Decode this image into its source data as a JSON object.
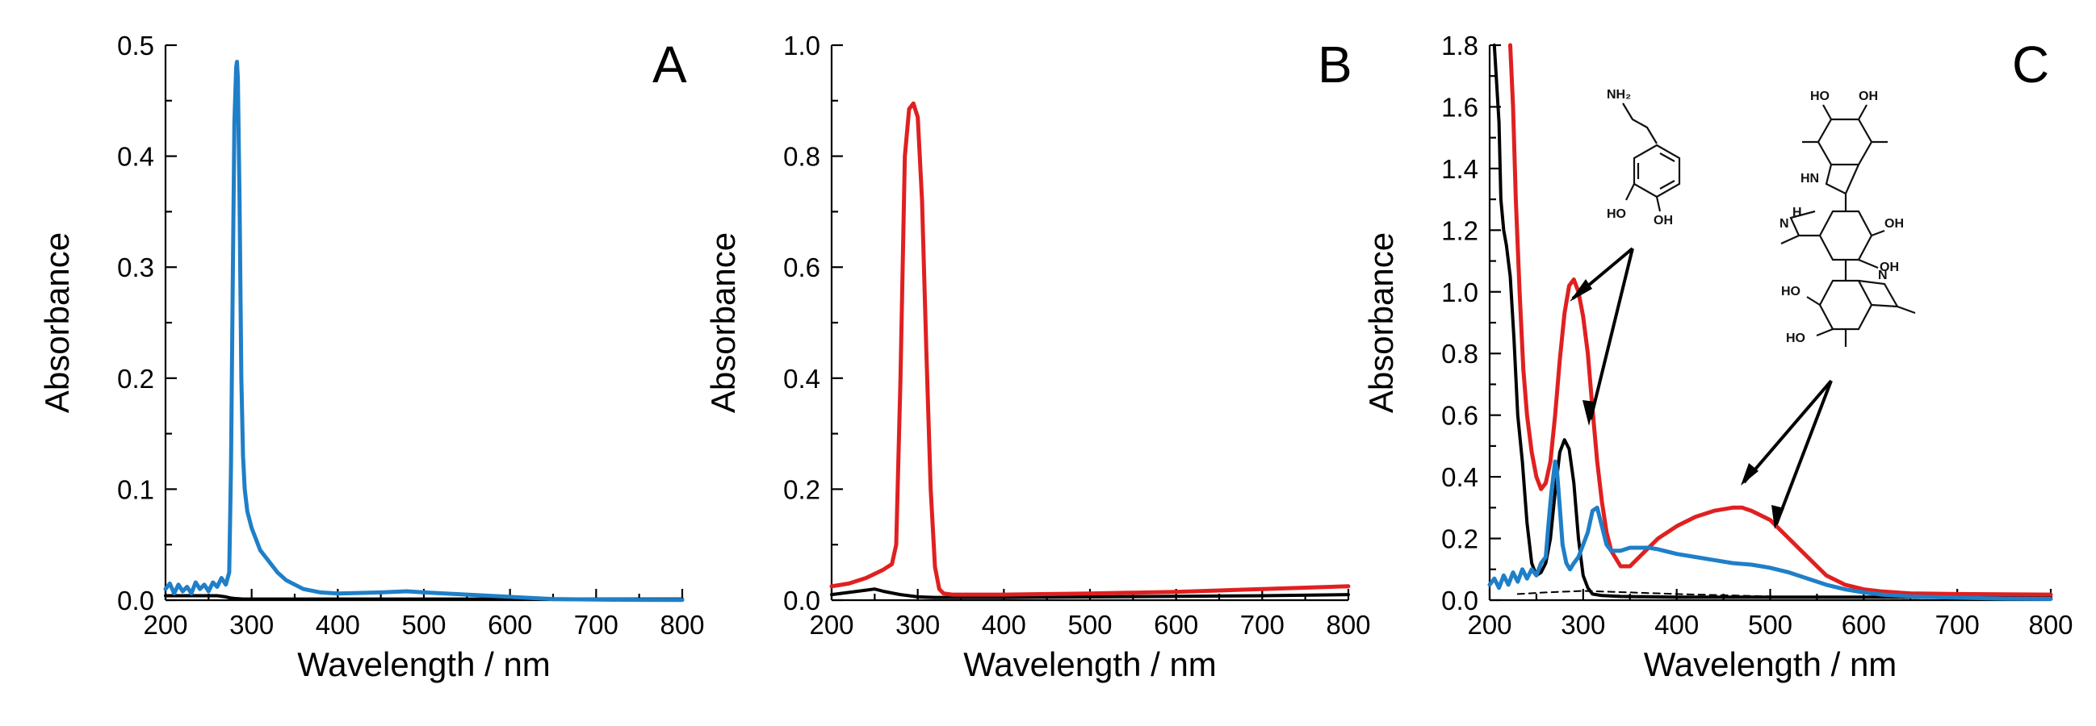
{
  "chart_data": [
    {
      "panel": "A",
      "type": "line",
      "xlabel": "Wavelength / nm",
      "ylabel": "Absorbance",
      "xlim": [
        200,
        800
      ],
      "ylim": [
        0,
        0.5
      ],
      "xticks": [
        200,
        300,
        400,
        500,
        600,
        700,
        800
      ],
      "yticks": [
        0.0,
        0.1,
        0.2,
        0.3,
        0.4,
        0.5
      ],
      "ytick_labels": [
        "0.0",
        "0.1",
        "0.2",
        "0.3",
        "0.4",
        "0.5"
      ],
      "series": [
        {
          "name": "black",
          "color": "#000000",
          "x": [
            200,
            260,
            270,
            275,
            280,
            290,
            300,
            320,
            400,
            500,
            600,
            700,
            800
          ],
          "y": [
            0.004,
            0.004,
            0.003,
            0.002,
            0.0015,
            0.001,
            0.001,
            0.001,
            0.001,
            0.001,
            0.001,
            0.001,
            0.001
          ]
        },
        {
          "name": "blue",
          "color": "#1f7fc8",
          "x": [
            200,
            205,
            210,
            215,
            220,
            225,
            230,
            235,
            240,
            245,
            250,
            255,
            260,
            265,
            270,
            274,
            276,
            278,
            280,
            282,
            283,
            284,
            286,
            288,
            290,
            292,
            295,
            300,
            305,
            310,
            320,
            330,
            340,
            360,
            380,
            400,
            450,
            480,
            500,
            550,
            600,
            650,
            700,
            750,
            800
          ],
          "y": [
            0.01,
            0.015,
            0.006,
            0.014,
            0.008,
            0.012,
            0.006,
            0.016,
            0.01,
            0.014,
            0.008,
            0.016,
            0.012,
            0.02,
            0.014,
            0.025,
            0.12,
            0.28,
            0.43,
            0.48,
            0.485,
            0.47,
            0.36,
            0.2,
            0.13,
            0.1,
            0.08,
            0.065,
            0.055,
            0.045,
            0.035,
            0.025,
            0.018,
            0.01,
            0.007,
            0.006,
            0.007,
            0.008,
            0.007,
            0.005,
            0.003,
            0.001,
            0.0005,
            0.0003,
            0.0002
          ]
        }
      ]
    },
    {
      "panel": "B",
      "type": "line",
      "xlabel": "Wavelength / nm",
      "ylabel": "Absorbance",
      "xlim": [
        200,
        800
      ],
      "ylim": [
        0,
        1.0
      ],
      "xticks": [
        200,
        300,
        400,
        500,
        600,
        700,
        800
      ],
      "yticks": [
        0.0,
        0.2,
        0.4,
        0.6,
        0.8,
        1.0
      ],
      "ytick_labels": [
        "0.0",
        "0.2",
        "0.4",
        "0.6",
        "0.8",
        "1.0"
      ],
      "series": [
        {
          "name": "black",
          "color": "#000000",
          "x": [
            200,
            220,
            240,
            250,
            260,
            270,
            280,
            290,
            300,
            320,
            400,
            500,
            600,
            700,
            800
          ],
          "y": [
            0.01,
            0.014,
            0.018,
            0.02,
            0.016,
            0.013,
            0.01,
            0.008,
            0.006,
            0.005,
            0.005,
            0.006,
            0.007,
            0.008,
            0.01
          ]
        },
        {
          "name": "red",
          "color": "#e02020",
          "x": [
            200,
            220,
            240,
            260,
            270,
            275,
            280,
            285,
            290,
            295,
            300,
            305,
            310,
            315,
            320,
            325,
            330,
            340,
            400,
            500,
            600,
            700,
            800
          ],
          "y": [
            0.025,
            0.03,
            0.04,
            0.055,
            0.065,
            0.1,
            0.4,
            0.8,
            0.885,
            0.895,
            0.87,
            0.72,
            0.45,
            0.2,
            0.06,
            0.02,
            0.012,
            0.01,
            0.01,
            0.012,
            0.015,
            0.02,
            0.025
          ]
        }
      ]
    },
    {
      "panel": "C",
      "type": "line",
      "xlabel": "Wavelength / nm",
      "ylabel": "Absorbance",
      "xlim": [
        200,
        800
      ],
      "ylim": [
        0,
        1.8
      ],
      "xticks": [
        200,
        300,
        400,
        500,
        600,
        700,
        800
      ],
      "yticks": [
        0.0,
        0.2,
        0.4,
        0.6,
        0.8,
        1.0,
        1.2,
        1.4,
        1.6,
        1.8
      ],
      "ytick_labels": [
        "0.0",
        "0.2",
        "0.4",
        "0.6",
        "0.8",
        "1.0",
        "1.2",
        "1.4",
        "1.6",
        "1.8"
      ],
      "series": [
        {
          "name": "black",
          "color": "#000000",
          "x": [
            205,
            210,
            212,
            215,
            218,
            222,
            226,
            230,
            235,
            240,
            245,
            250,
            255,
            260,
            265,
            270,
            275,
            280,
            285,
            290,
            295,
            300,
            305,
            310,
            320,
            340,
            400,
            500,
            600,
            700,
            800
          ],
          "y": [
            1.8,
            1.55,
            1.3,
            1.2,
            1.15,
            1.05,
            0.85,
            0.6,
            0.45,
            0.25,
            0.12,
            0.08,
            0.09,
            0.12,
            0.2,
            0.35,
            0.48,
            0.52,
            0.49,
            0.38,
            0.2,
            0.08,
            0.04,
            0.02,
            0.015,
            0.012,
            0.01,
            0.01,
            0.01,
            0.01,
            0.01
          ]
        },
        {
          "name": "dashed",
          "color": "#000000",
          "dashed": true,
          "x": [
            230,
            260,
            300,
            350,
            400,
            500,
            600,
            700,
            800
          ],
          "y": [
            0.02,
            0.025,
            0.03,
            0.025,
            0.02,
            0.012,
            0.008,
            0.006,
            0.005
          ]
        },
        {
          "name": "red",
          "color": "#e02020",
          "x": [
            222,
            225,
            228,
            232,
            236,
            240,
            245,
            250,
            255,
            260,
            265,
            270,
            275,
            280,
            285,
            290,
            295,
            300,
            305,
            310,
            315,
            320,
            325,
            330,
            340,
            350,
            360,
            380,
            400,
            420,
            440,
            460,
            470,
            480,
            500,
            520,
            540,
            560,
            580,
            600,
            620,
            650,
            700,
            800
          ],
          "y": [
            1.8,
            1.6,
            1.3,
            1.0,
            0.75,
            0.6,
            0.48,
            0.4,
            0.36,
            0.38,
            0.45,
            0.6,
            0.78,
            0.93,
            1.02,
            1.04,
            1.0,
            0.92,
            0.8,
            0.62,
            0.45,
            0.32,
            0.22,
            0.16,
            0.11,
            0.11,
            0.14,
            0.2,
            0.24,
            0.27,
            0.29,
            0.3,
            0.3,
            0.29,
            0.26,
            0.2,
            0.14,
            0.08,
            0.05,
            0.035,
            0.028,
            0.022,
            0.02,
            0.018
          ]
        },
        {
          "name": "blue",
          "color": "#1f7fc8",
          "x": [
            200,
            205,
            210,
            215,
            220,
            225,
            230,
            235,
            240,
            245,
            250,
            255,
            260,
            263,
            266,
            270,
            272,
            275,
            278,
            282,
            286,
            290,
            295,
            300,
            305,
            310,
            315,
            320,
            325,
            330,
            340,
            350,
            360,
            370,
            380,
            400,
            420,
            440,
            460,
            480,
            500,
            520,
            540,
            560,
            580,
            600,
            620,
            650,
            700,
            750,
            800
          ],
          "y": [
            0.05,
            0.07,
            0.04,
            0.08,
            0.05,
            0.09,
            0.06,
            0.1,
            0.07,
            0.1,
            0.08,
            0.12,
            0.14,
            0.25,
            0.35,
            0.45,
            0.42,
            0.3,
            0.18,
            0.12,
            0.1,
            0.12,
            0.14,
            0.18,
            0.22,
            0.29,
            0.3,
            0.24,
            0.18,
            0.16,
            0.16,
            0.17,
            0.17,
            0.17,
            0.165,
            0.15,
            0.14,
            0.13,
            0.12,
            0.115,
            0.105,
            0.09,
            0.07,
            0.05,
            0.035,
            0.025,
            0.018,
            0.012,
            0.008,
            0.005,
            0.004
          ]
        }
      ]
    }
  ],
  "panel_labels": [
    "A",
    "B",
    "C"
  ],
  "structure_labels": {
    "dopamine_nh2": "NH₂",
    "dopamine_ho1": "HO",
    "dopamine_oh2": "OH",
    "poly_ho_top": "HO",
    "poly_oh_top": "OH",
    "poly_hn_top": "HN",
    "poly_h_mid": "H",
    "poly_n_mid": "N",
    "poly_oh_mid1": "OH",
    "poly_oh_mid2": "OH",
    "poly_ho_low1": "HO",
    "poly_ho_low2": "HO",
    "poly_n_low": "N"
  }
}
